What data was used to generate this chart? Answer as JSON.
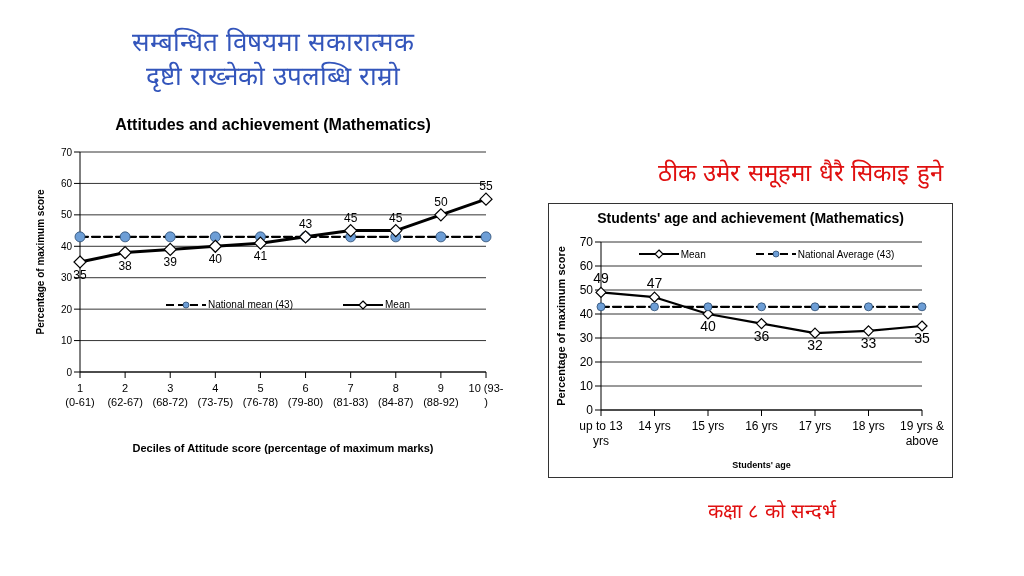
{
  "chart_data": [
    {
      "type": "line",
      "title": "Attitudes and achievement  (Mathematics)",
      "xlabel": "Deciles of Attitude score (percentage of maximum marks)",
      "ylabel": "Percentage of maximum score",
      "annotations": [
        "सम्बन्धित विषयमा सकारात्मक दृष्टी राख्नेको उपलब्धि राम्रो"
      ],
      "categories": [
        "1 (0-61)",
        "2 (62-67)",
        "3 (68-72)",
        "4 (73-75)",
        "5 (76-78)",
        "6 (79-80)",
        "7 (81-83)",
        "8 (84-87)",
        "9 (88-92)",
        "10 (93- )"
      ],
      "series": [
        {
          "name": "National mean (43)",
          "color": "#000000",
          "values": [
            43,
            43,
            43,
            43,
            43,
            43,
            43,
            43,
            43,
            43
          ],
          "marker": "circle",
          "line_style": "dashed"
        },
        {
          "name": "Mean",
          "color": "#000000",
          "values": [
            35,
            38,
            39,
            40,
            41,
            43,
            45,
            45,
            50,
            55
          ],
          "marker": "diamond",
          "line_style": "solid",
          "value_labels": [
            "35",
            "38",
            "39",
            "40",
            "41",
            "43",
            "45",
            "45",
            "50",
            "55"
          ]
        }
      ],
      "ylim": [
        0,
        70
      ],
      "yticks": [
        0,
        10,
        20,
        30,
        40,
        50,
        60,
        70
      ],
      "grid": "y",
      "legend": "bottom"
    },
    {
      "type": "line",
      "title": "Students' age and achievement (Mathematics)",
      "xlabel": "Students' age",
      "ylabel": "Percentage of maximum score",
      "annotations": [
        "ठीक उमेर समूहमा धैरै सिकाइ हुने",
        "कक्षा ८ को सन्दर्भ"
      ],
      "categories": [
        "up to 13 yrs",
        "14 yrs",
        "15 yrs",
        "16 yrs",
        "17 yrs",
        "18 yrs",
        "19 yrs & above"
      ],
      "series": [
        {
          "name": "Mean",
          "color": "#000000",
          "values": [
            49,
            47,
            40,
            36,
            32,
            33,
            35
          ],
          "marker": "diamond",
          "line_style": "solid",
          "value_labels": [
            "49",
            "47",
            "40",
            "36",
            "32",
            "33",
            "35"
          ]
        },
        {
          "name": "National Average (43)",
          "color": "#000000",
          "values": [
            43,
            43,
            43,
            43,
            43,
            43,
            43
          ],
          "marker": "circle",
          "line_style": "dashed"
        }
      ],
      "ylim": [
        0,
        70
      ],
      "yticks": [
        0,
        10,
        20,
        30,
        40,
        50,
        60,
        70
      ],
      "grid": "y",
      "legend": "top"
    }
  ]
}
